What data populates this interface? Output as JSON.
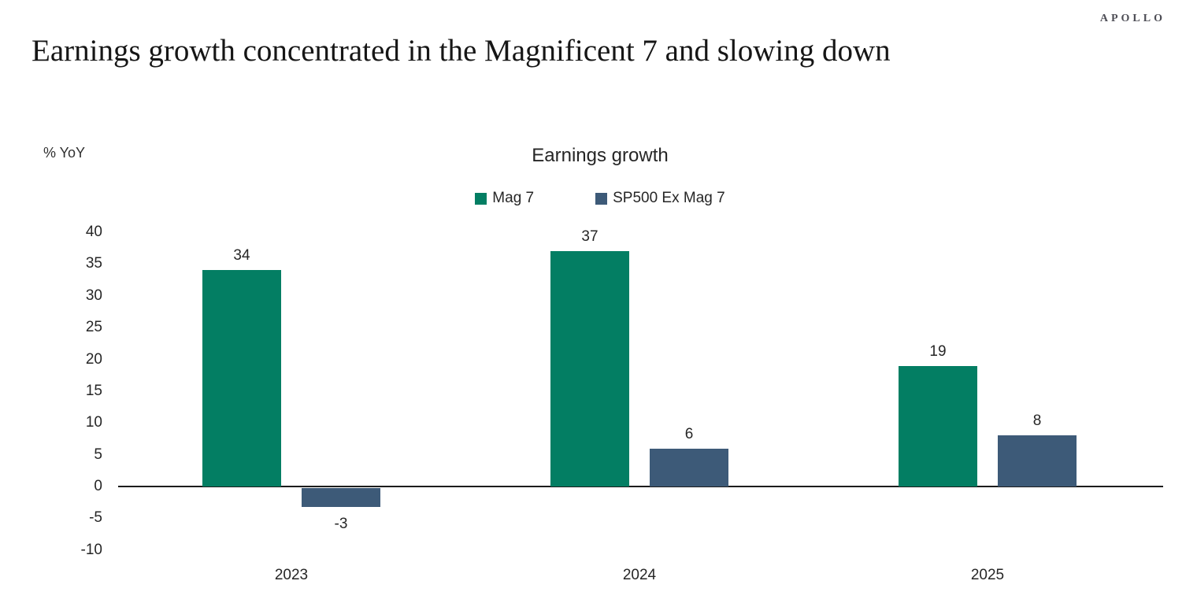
{
  "brand": "APOLLO",
  "page_title": "Earnings growth concentrated in the Magnificent 7 and slowing down",
  "chart_data": {
    "type": "bar",
    "title": "Earnings growth",
    "unit_label": "% YoY",
    "categories": [
      "2023",
      "2024",
      "2025"
    ],
    "series": [
      {
        "name": "Mag 7",
        "color": "#037e63",
        "values": [
          34,
          37,
          19
        ]
      },
      {
        "name": "SP500 Ex Mag 7",
        "color": "#3d5a78",
        "values": [
          -3,
          6,
          8
        ]
      }
    ],
    "ylim": [
      -10,
      40
    ],
    "ytick_step": 5,
    "yticks": [
      40,
      35,
      30,
      25,
      20,
      15,
      10,
      5,
      0,
      -5,
      -10
    ],
    "grid": false,
    "legend_position": "top-center",
    "data_labels": true,
    "xlabel": "",
    "ylabel": "% YoY"
  }
}
